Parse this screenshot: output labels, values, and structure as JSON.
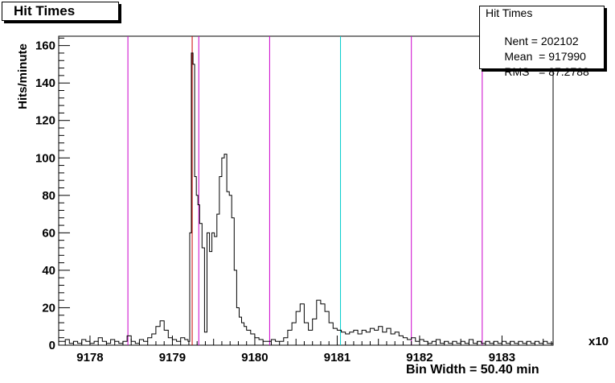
{
  "window": {
    "title": "Hit Times"
  },
  "stats": {
    "title": "Hit Times",
    "rows": [
      {
        "label": "Nent",
        "value": "202102"
      },
      {
        "label": "Mean",
        "value": "917990"
      },
      {
        "label": "RMS",
        "value": "87.2788"
      }
    ]
  },
  "footer": {
    "bin_width": "Bin Width = 50.40 min"
  },
  "axis": {
    "exponent": "x10"
  },
  "colors": {
    "frame": "#000000",
    "hist": "#000000",
    "magenta": "#cc00cc",
    "cyan": "#00cccc",
    "red": "#cc0000",
    "canvas": "#ffffff"
  },
  "chart_data": {
    "type": "histogram",
    "title": "Hit Times",
    "xlabel": "",
    "ylabel": "Hits/minute",
    "x_unit_exponent": "x10",
    "xlim": [
      9177.62,
      9183.62
    ],
    "ylim": [
      0,
      165
    ],
    "xticks": [
      9178,
      9179,
      9180,
      9181,
      9182,
      9183
    ],
    "yticks": [
      0,
      20,
      40,
      60,
      80,
      100,
      120,
      140,
      160
    ],
    "vertical_lines": [
      {
        "x": 9178.46,
        "color": "magenta"
      },
      {
        "x": 9179.24,
        "color": "red"
      },
      {
        "x": 9179.32,
        "color": "magenta"
      },
      {
        "x": 9180.18,
        "color": "magenta"
      },
      {
        "x": 9181.04,
        "color": "cyan"
      },
      {
        "x": 9181.9,
        "color": "magenta"
      },
      {
        "x": 9182.76,
        "color": "magenta"
      }
    ],
    "series": [
      {
        "points": [
          [
            9177.65,
            2
          ],
          [
            9177.7,
            3
          ],
          [
            9177.75,
            1
          ],
          [
            9177.8,
            2
          ],
          [
            9177.85,
            1
          ],
          [
            9177.9,
            3
          ],
          [
            9177.95,
            2
          ],
          [
            9178.0,
            1
          ],
          [
            9178.05,
            2
          ],
          [
            9178.1,
            4
          ],
          [
            9178.15,
            2
          ],
          [
            9178.2,
            1
          ],
          [
            9178.25,
            3
          ],
          [
            9178.3,
            2
          ],
          [
            9178.35,
            1
          ],
          [
            9178.4,
            2
          ],
          [
            9178.45,
            5
          ],
          [
            9178.5,
            2
          ],
          [
            9178.55,
            1
          ],
          [
            9178.6,
            3
          ],
          [
            9178.65,
            2
          ],
          [
            9178.7,
            4
          ],
          [
            9178.75,
            6
          ],
          [
            9178.8,
            10
          ],
          [
            9178.85,
            13
          ],
          [
            9178.9,
            8
          ],
          [
            9178.95,
            4
          ],
          [
            9179.0,
            3
          ],
          [
            9179.05,
            2
          ],
          [
            9179.1,
            4
          ],
          [
            9179.15,
            3
          ],
          [
            9179.19,
            2
          ],
          [
            9179.21,
            60
          ],
          [
            9179.23,
            156
          ],
          [
            9179.25,
            150
          ],
          [
            9179.27,
            90
          ],
          [
            9179.29,
            80
          ],
          [
            9179.31,
            75
          ],
          [
            9179.33,
            65
          ],
          [
            9179.36,
            52
          ],
          [
            9179.39,
            7
          ],
          [
            9179.42,
            60
          ],
          [
            9179.45,
            50
          ],
          [
            9179.48,
            60
          ],
          [
            9179.51,
            58
          ],
          [
            9179.54,
            70
          ],
          [
            9179.57,
            90
          ],
          [
            9179.6,
            100
          ],
          [
            9179.63,
            102
          ],
          [
            9179.66,
            82
          ],
          [
            9179.69,
            80
          ],
          [
            9179.72,
            68
          ],
          [
            9179.75,
            40
          ],
          [
            9179.78,
            20
          ],
          [
            9179.81,
            15
          ],
          [
            9179.84,
            12
          ],
          [
            9179.87,
            10
          ],
          [
            9179.9,
            8
          ],
          [
            9179.95,
            6
          ],
          [
            9180.0,
            4
          ],
          [
            9180.05,
            3
          ],
          [
            9180.1,
            2
          ],
          [
            9180.15,
            2
          ],
          [
            9180.2,
            3
          ],
          [
            9180.25,
            2
          ],
          [
            9180.3,
            2
          ],
          [
            9180.35,
            4
          ],
          [
            9180.4,
            8
          ],
          [
            9180.45,
            12
          ],
          [
            9180.5,
            18
          ],
          [
            9180.55,
            22
          ],
          [
            9180.6,
            12
          ],
          [
            9180.65,
            8
          ],
          [
            9180.7,
            14
          ],
          [
            9180.75,
            24
          ],
          [
            9180.8,
            22
          ],
          [
            9180.85,
            18
          ],
          [
            9180.9,
            12
          ],
          [
            9180.95,
            9
          ],
          [
            9181.0,
            8
          ],
          [
            9181.05,
            7
          ],
          [
            9181.1,
            6
          ],
          [
            9181.15,
            7
          ],
          [
            9181.2,
            8
          ],
          [
            9181.25,
            6
          ],
          [
            9181.3,
            8
          ],
          [
            9181.35,
            7
          ],
          [
            9181.4,
            9
          ],
          [
            9181.45,
            8
          ],
          [
            9181.5,
            10
          ],
          [
            9181.55,
            7
          ],
          [
            9181.6,
            9
          ],
          [
            9181.65,
            6
          ],
          [
            9181.7,
            7
          ],
          [
            9181.75,
            5
          ],
          [
            9181.8,
            4
          ],
          [
            9181.85,
            3
          ],
          [
            9181.9,
            4
          ],
          [
            9181.95,
            2
          ],
          [
            9182.0,
            3
          ],
          [
            9182.05,
            2
          ],
          [
            9182.1,
            1
          ],
          [
            9182.15,
            2
          ],
          [
            9182.2,
            3
          ],
          [
            9182.25,
            1
          ],
          [
            9182.3,
            2
          ],
          [
            9182.35,
            1
          ],
          [
            9182.4,
            2
          ],
          [
            9182.45,
            1
          ],
          [
            9182.5,
            2
          ],
          [
            9182.55,
            1
          ],
          [
            9182.6,
            3
          ],
          [
            9182.65,
            1
          ],
          [
            9182.7,
            2
          ],
          [
            9182.75,
            1
          ],
          [
            9182.8,
            2
          ],
          [
            9182.85,
            1
          ],
          [
            9182.9,
            2
          ],
          [
            9182.95,
            1
          ],
          [
            9183.0,
            2
          ],
          [
            9183.05,
            1
          ],
          [
            9183.1,
            2
          ],
          [
            9183.15,
            1
          ],
          [
            9183.2,
            2
          ],
          [
            9183.25,
            1
          ],
          [
            9183.3,
            2
          ],
          [
            9183.35,
            1
          ],
          [
            9183.4,
            2
          ],
          [
            9183.45,
            1
          ],
          [
            9183.5,
            2
          ],
          [
            9183.55,
            1
          ]
        ]
      }
    ],
    "grid": false,
    "legend": "top-right stats box"
  }
}
